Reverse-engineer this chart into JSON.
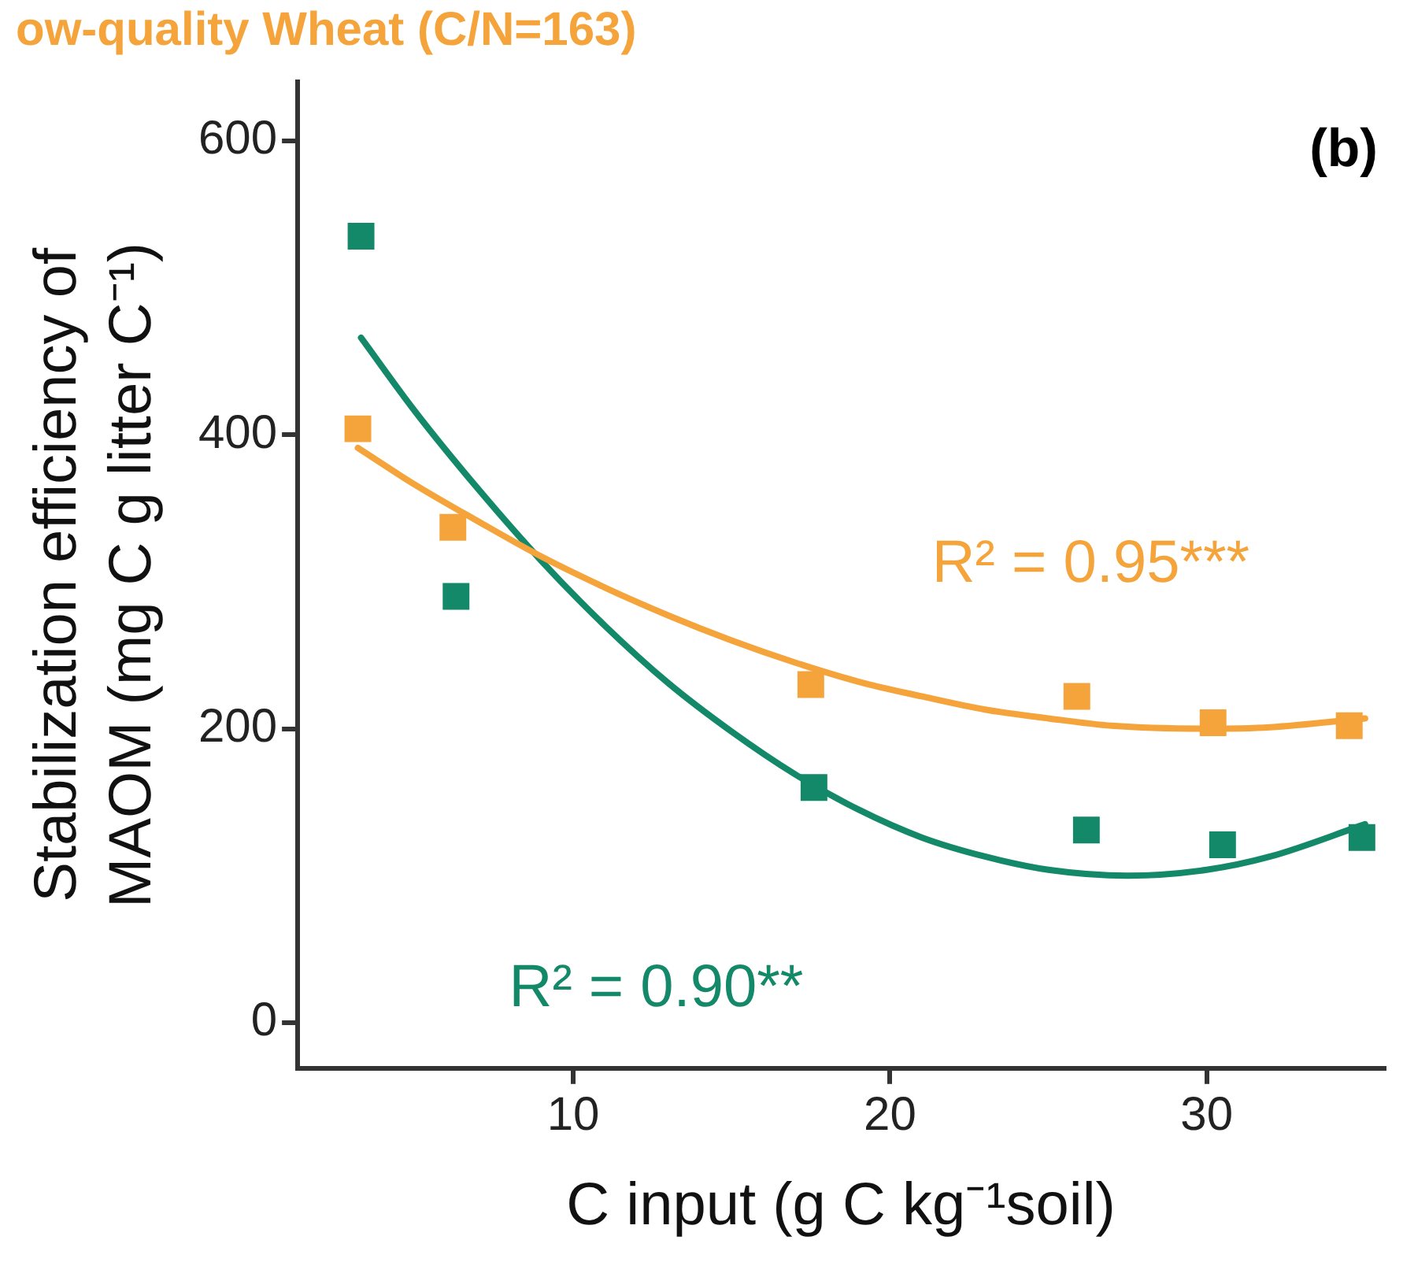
{
  "chart_data": {
    "type": "scatter",
    "title": "ow-quality Wheat (C/N=163)",
    "xlabel": "C input (g C kg⁻¹soil)",
    "ylabel": "Stabilization efficiency of\nMAOM (mg C g litter C⁻¹)",
    "xlim": [
      1.3,
      35.6
    ],
    "xticks": [
      10,
      20,
      30
    ],
    "ylim": [
      -31,
      640
    ],
    "yticks": [
      0,
      200,
      400,
      600
    ],
    "grid": false,
    "legend": false,
    "marker": "square",
    "series": [
      {
        "color": "#f4a43a",
        "x": [
          3.2,
          6.2,
          17.5,
          25.9,
          30.2,
          34.5
        ],
        "values": [
          404,
          337,
          230,
          222,
          204,
          202
        ]
      },
      {
        "color": "#14896a",
        "x": [
          3.3,
          6.3,
          17.6,
          26.2,
          30.5,
          34.9
        ],
        "values": [
          535,
          290,
          160,
          131,
          121,
          126
        ]
      },
      {
        "type": "line",
        "marker": "none",
        "color": "#f4a43a",
        "x": [
          3.2,
          5,
          7,
          9,
          11,
          13,
          15,
          17,
          19,
          21,
          23,
          25,
          27,
          30,
          32,
          35
        ],
        "values": [
          391,
          366,
          341,
          317,
          296,
          277,
          260,
          245,
          232,
          222,
          213,
          207,
          202,
          200,
          201,
          207
        ]
      },
      {
        "type": "line",
        "marker": "none",
        "color": "#14896a",
        "x": [
          3.3,
          5,
          7,
          9,
          11,
          13,
          15,
          17,
          19,
          21,
          23,
          25,
          27.5,
          30,
          32,
          35
        ],
        "values": [
          466,
          416,
          363,
          314,
          270,
          231,
          198,
          169,
          145,
          126,
          113,
          104,
          100,
          104,
          113,
          135
        ]
      }
    ],
    "annotations": [
      "R² = 0.95***",
      "R² = 0.90**",
      "(b)"
    ]
  }
}
